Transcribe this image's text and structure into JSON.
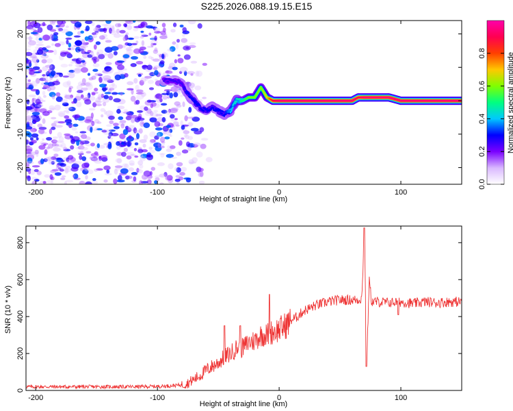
{
  "figure": {
    "title": "S225.2026.088.19.15.E15"
  },
  "chart_data": [
    {
      "type": "heatmap",
      "xlabel": "Height of straight line (km)",
      "ylabel": "Frequency (Hz)",
      "xlim": [
        -208,
        150
      ],
      "ylim": [
        -25,
        24
      ],
      "xticks": [
        -200,
        -100,
        0,
        100
      ],
      "yticks": [
        -20,
        -10,
        0,
        10,
        20
      ],
      "grid": false,
      "colorbar": {
        "label": "Normalized spectral amplitude",
        "range": [
          0,
          1
        ],
        "ticks": [
          0.0,
          0.2,
          0.4,
          0.6,
          0.8
        ],
        "colormap": [
          "#ffffff",
          "#d9b8ff",
          "#7a00ff",
          "#0000ff",
          "#00c8ff",
          "#00ff80",
          "#80ff00",
          "#ffc800",
          "#ff4000",
          "#ff0050",
          "#ff00aa"
        ]
      },
      "ridge": {
        "description_points_x": [
          -95,
          -85,
          -80,
          -75,
          -70,
          -65,
          -60,
          -55,
          -50,
          -45,
          -40,
          -35,
          -30,
          -25,
          -20,
          -15,
          -10,
          -5,
          0,
          5,
          10,
          20,
          40,
          60,
          65,
          70,
          80,
          90,
          100,
          120,
          150
        ],
        "description_points_y": [
          6,
          6,
          5,
          2,
          0,
          -2,
          -3,
          -2,
          -3,
          -4,
          -3,
          0,
          0,
          1,
          1,
          4,
          1,
          0,
          0,
          0,
          0,
          0,
          0,
          0,
          1,
          1,
          1,
          1,
          0,
          0,
          0
        ],
        "amplitude": [
          0.25,
          0.25,
          0.25,
          0.3,
          0.3,
          0.3,
          0.3,
          0.3,
          0.3,
          0.3,
          0.4,
          0.45,
          0.5,
          0.6,
          0.6,
          0.6,
          0.7,
          0.9,
          0.95,
          0.95,
          0.95,
          0.95,
          0.95,
          0.95,
          0.9,
          0.95,
          0.95,
          0.95,
          0.95,
          0.95,
          0.95
        ]
      }
    },
    {
      "type": "line",
      "xlabel": "Height of straight line (km)",
      "ylabel": "SNR (10 * v/v)",
      "xlim": [
        -208,
        150
      ],
      "ylim": [
        0,
        890
      ],
      "xticks": [
        -200,
        -100,
        0,
        100
      ],
      "yticks": [
        0,
        200,
        400,
        600,
        800
      ],
      "grid": false,
      "color": "#ee3333",
      "series": [
        {
          "x": [
            -208,
            -180,
            -150,
            -120,
            -100,
            -90,
            -80,
            -75,
            -70,
            -65,
            -60,
            -55,
            -50,
            -45,
            -40,
            -35,
            -30,
            -25,
            -20,
            -15,
            -10,
            -5,
            0,
            5,
            10,
            15,
            20,
            30,
            40,
            50,
            60,
            65,
            68,
            70,
            72,
            74,
            76,
            80,
            90,
            100,
            110,
            120,
            130,
            140,
            150
          ],
          "y": [
            20,
            20,
            20,
            20,
            22,
            25,
            30,
            40,
            60,
            80,
            110,
            130,
            150,
            180,
            200,
            230,
            230,
            260,
            270,
            300,
            300,
            320,
            330,
            350,
            380,
            400,
            430,
            460,
            480,
            490,
            490,
            490,
            500,
            870,
            150,
            600,
            480,
            480,
            475,
            480,
            470,
            480,
            475,
            480,
            480
          ],
          "spikes": [
            {
              "x": -45,
              "y": 350
            },
            {
              "x": -32,
              "y": 350
            },
            {
              "x": -8,
              "y": 520
            },
            {
              "x": 70,
              "y": 880
            },
            {
              "x": 71.5,
              "y": 130
            },
            {
              "x": 98,
              "y": 410
            }
          ]
        }
      ]
    }
  ]
}
